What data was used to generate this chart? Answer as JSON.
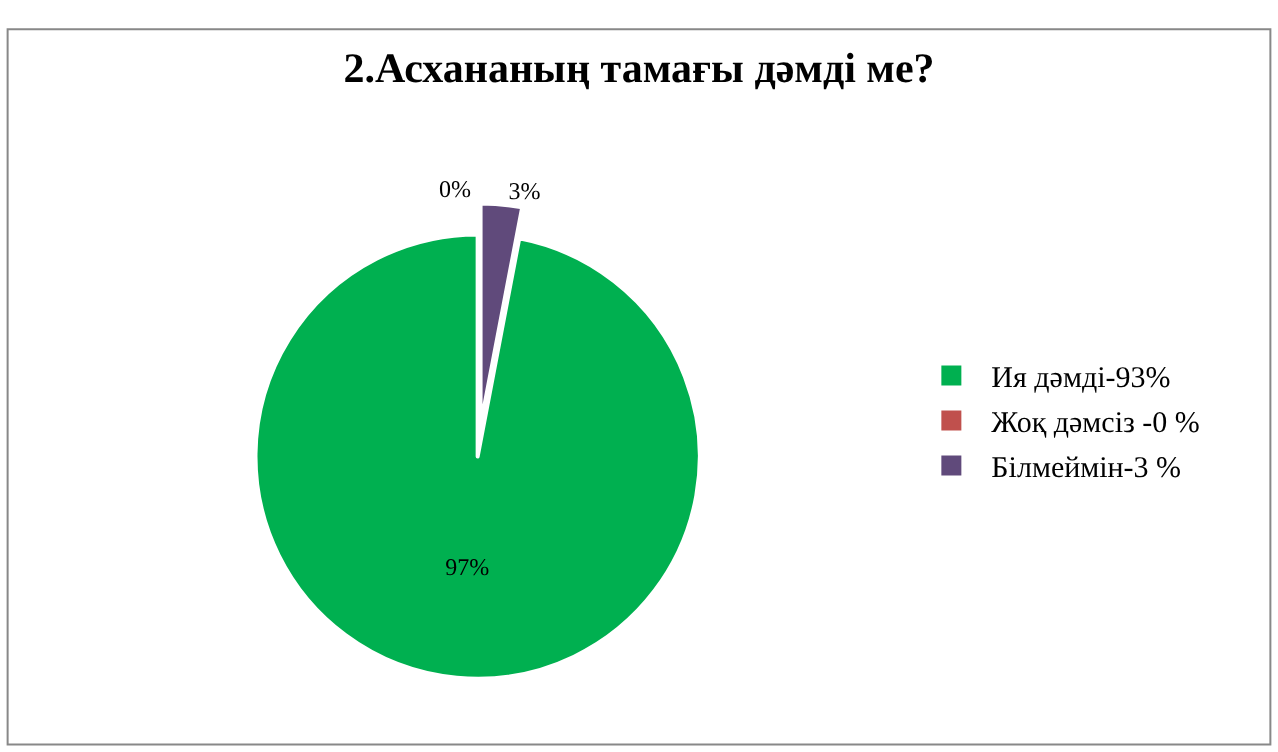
{
  "chart_data": {
    "type": "pie",
    "title": "2.Асхананың тамағы дәмді ме?",
    "categories": [
      "Ия дәмді-93%",
      "Жоқ дәмсіз -0 %",
      "Білмеймін-3 %"
    ],
    "values": [
      97,
      0,
      3
    ],
    "colors": [
      "#00b050",
      "#c0504d",
      "#604a7b"
    ],
    "value_labels": [
      "97%",
      "0%",
      "3%"
    ],
    "legend": "right"
  }
}
